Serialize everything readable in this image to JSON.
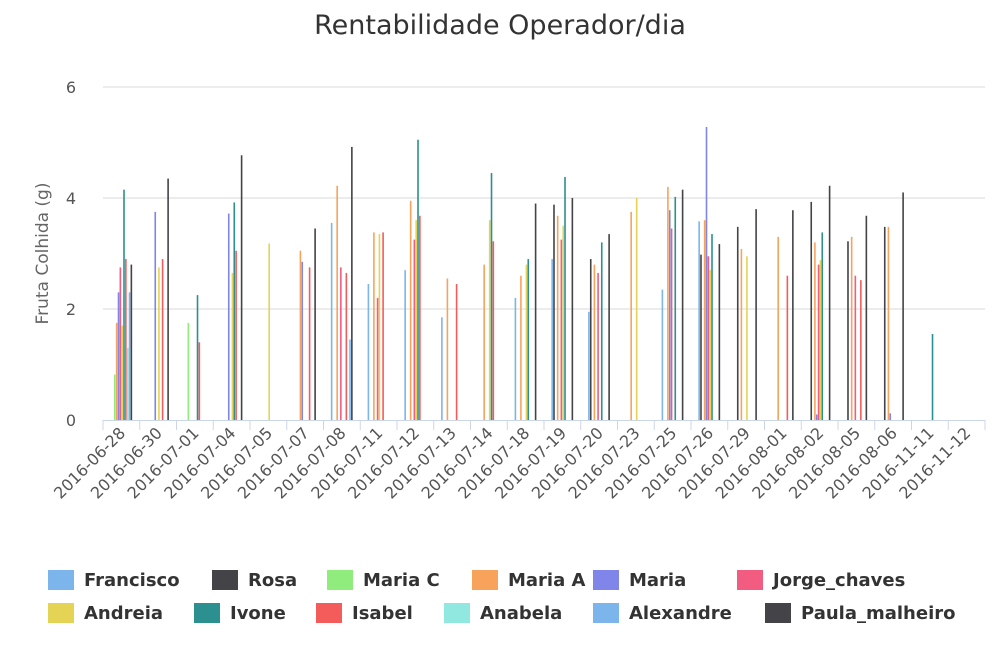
{
  "chart_data": {
    "type": "bar",
    "title": "Rentabilidade Operador/dia",
    "xlabel": "",
    "ylabel": "Fruta Colhida (g)",
    "ylim": [
      0,
      6
    ],
    "yticks": [
      "0",
      "2",
      "4",
      "6"
    ],
    "grid": true,
    "legend_placement": "bottom",
    "categories": [
      "2016-06-28",
      "2016-06-30",
      "2016-07-01",
      "2016-07-04",
      "2016-07-05",
      "2016-07-07",
      "2016-07-08",
      "2016-07-11",
      "2016-07-12",
      "2016-07-13",
      "2016-07-14",
      "2016-07-18",
      "2016-07-19",
      "2016-07-20",
      "2016-07-23",
      "2016-07-25",
      "2016-07-26",
      "2016-07-29",
      "2016-08-01",
      "2016-08-02",
      "2016-08-05",
      "2016-08-06",
      "2016-11-11",
      "2016-11-12"
    ],
    "series": [
      {
        "name": "Francisco",
        "color": "#7cb5ec",
        "values": [
          null,
          null,
          null,
          null,
          null,
          null,
          3.55,
          2.45,
          2.7,
          1.85,
          null,
          2.2,
          2.9,
          1.95,
          null,
          2.35,
          3.58,
          null,
          null,
          null,
          null,
          null,
          null,
          null
        ]
      },
      {
        "name": "Rosa",
        "color": "#434348",
        "values": [
          null,
          null,
          null,
          null,
          null,
          null,
          null,
          null,
          null,
          null,
          null,
          null,
          3.88,
          2.9,
          null,
          null,
          2.98,
          3.48,
          null,
          3.93,
          3.22,
          3.48,
          null,
          null
        ]
      },
      {
        "name": "Maria C",
        "color": "#90ed7d",
        "values": [
          0.82,
          null,
          1.75,
          null,
          null,
          null,
          null,
          null,
          null,
          null,
          null,
          null,
          null,
          null,
          null,
          null,
          null,
          null,
          null,
          null,
          null,
          null,
          null,
          null
        ]
      },
      {
        "name": "Maria A",
        "color": "#f7a35c",
        "values": [
          1.75,
          null,
          null,
          null,
          null,
          3.05,
          4.22,
          3.38,
          3.95,
          2.55,
          2.8,
          2.6,
          3.68,
          2.8,
          3.75,
          4.2,
          3.6,
          3.08,
          3.3,
          3.2,
          3.3,
          3.48,
          null,
          null
        ]
      },
      {
        "name": "Maria",
        "color": "#8085e9",
        "values": [
          2.3,
          3.75,
          null,
          3.72,
          null,
          2.85,
          null,
          null,
          null,
          null,
          null,
          null,
          null,
          null,
          null,
          3.78,
          5.28,
          null,
          null,
          0.1,
          null,
          0.12,
          null,
          null
        ]
      },
      {
        "name": "Jorge_chaves",
        "color": "#f15c80",
        "values": [
          2.75,
          null,
          null,
          null,
          null,
          null,
          2.75,
          2.2,
          3.25,
          null,
          null,
          null,
          3.25,
          2.65,
          null,
          3.45,
          2.95,
          null,
          null,
          2.8,
          2.6,
          null,
          null,
          null
        ]
      },
      {
        "name": "Andreia",
        "color": "#e4d354",
        "values": [
          1.7,
          2.75,
          null,
          2.65,
          3.18,
          null,
          null,
          3.35,
          3.6,
          null,
          3.6,
          2.8,
          3.5,
          null,
          4.0,
          null,
          2.7,
          2.95,
          null,
          2.88,
          null,
          null,
          null,
          null
        ]
      },
      {
        "name": "Ivone",
        "color": "#2b908f",
        "values": [
          4.15,
          null,
          2.25,
          3.92,
          null,
          null,
          null,
          null,
          5.05,
          null,
          4.45,
          2.9,
          4.38,
          3.2,
          null,
          4.02,
          3.35,
          null,
          null,
          3.38,
          null,
          null,
          1.55,
          null
        ]
      },
      {
        "name": "Isabel",
        "color": "#f45b5b",
        "values": [
          2.9,
          2.9,
          1.4,
          3.05,
          null,
          2.75,
          2.65,
          3.38,
          3.68,
          2.45,
          3.22,
          null,
          null,
          null,
          null,
          null,
          null,
          null,
          2.6,
          null,
          2.52,
          null,
          null,
          null
        ]
      },
      {
        "name": "Anabela",
        "color": "#91e8e1",
        "values": [
          1.3,
          null,
          null,
          null,
          null,
          null,
          null,
          null,
          null,
          null,
          null,
          null,
          null,
          null,
          null,
          null,
          null,
          null,
          null,
          null,
          null,
          null,
          null,
          null
        ]
      },
      {
        "name": "Alexandre",
        "color": "#7cb5ec",
        "values": [
          2.3,
          null,
          null,
          null,
          null,
          null,
          1.45,
          null,
          null,
          null,
          null,
          null,
          null,
          null,
          null,
          null,
          null,
          null,
          null,
          null,
          null,
          null,
          null,
          null
        ]
      },
      {
        "name": "Paula_malheiro",
        "color": "#434348",
        "values": [
          2.8,
          4.35,
          null,
          4.77,
          null,
          3.45,
          4.92,
          null,
          null,
          null,
          null,
          3.9,
          4.0,
          3.35,
          null,
          4.15,
          3.17,
          3.8,
          3.78,
          4.22,
          3.68,
          4.1,
          null,
          null
        ]
      }
    ]
  }
}
